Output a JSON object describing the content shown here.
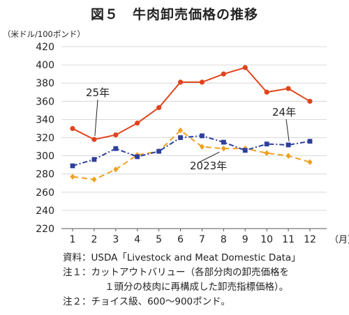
{
  "title": "図５　牛肉卸売価格の推移",
  "unit_label": "（米ドル/100ポンド）",
  "notes": [
    "資料：USDA「Livestock and Meat Domestic Data」",
    "注１：カットアウトバリュー（各部分肉の卸売価格を",
    "１頭分の枝肉に再構成した卸売指標価格）。",
    "注２：チョイス級、600～900ポンド。"
  ],
  "chart_data": {
    "type": "line",
    "title": "図５　牛肉卸売価格の推移",
    "ylabel": "（米ドル/100ポンド）",
    "xlabel": "（月）",
    "x": [
      1,
      2,
      3,
      4,
      5,
      6,
      7,
      8,
      9,
      10,
      11,
      12
    ],
    "ylim": [
      220,
      420
    ],
    "yticks": [
      220,
      240,
      260,
      280,
      300,
      320,
      340,
      360,
      380,
      400,
      420
    ],
    "grid": true,
    "series": [
      {
        "name": "25年",
        "color": "#e0441c",
        "marker": "circle",
        "dash": "solid",
        "values": [
          330,
          318,
          323,
          336,
          353,
          381,
          381,
          390,
          397,
          370,
          374,
          360
        ]
      },
      {
        "name": "24年",
        "color": "#2d3f9e",
        "marker": "square",
        "dash": "dashdot",
        "values": [
          289,
          296,
          308,
          299,
          305,
          320,
          322,
          315,
          306,
          313,
          312,
          316
        ]
      },
      {
        "name": "2023年",
        "color": "#f0a020",
        "marker": "diamond",
        "dash": "dashed",
        "values": [
          277,
          274,
          285,
          301,
          305,
          328,
          310,
          308,
          308,
          303,
          300,
          293
        ]
      }
    ]
  }
}
